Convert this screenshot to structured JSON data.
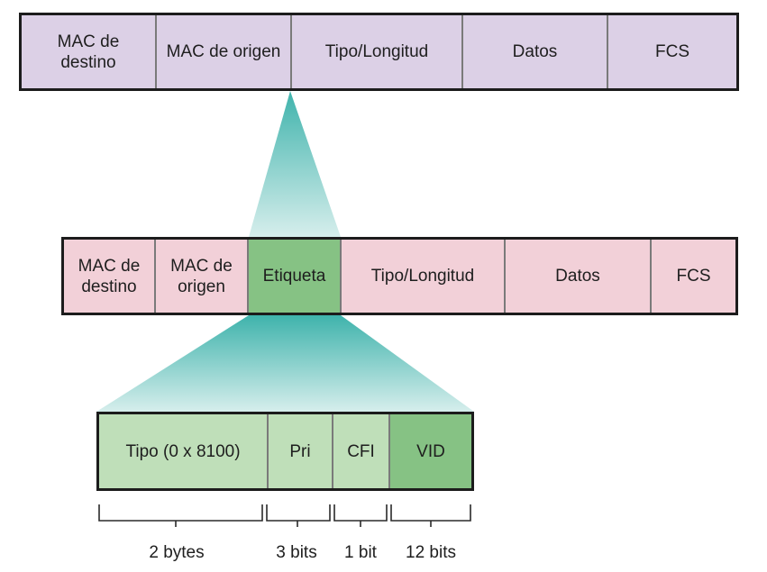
{
  "frame_top": {
    "fields": [
      {
        "label": "MAC de\ndestino"
      },
      {
        "label": "MAC de origen"
      },
      {
        "label": "Tipo/Longitud"
      },
      {
        "label": "Datos"
      },
      {
        "label": "FCS"
      }
    ]
  },
  "frame_mid": {
    "fields": [
      {
        "label": "MAC de\ndestino"
      },
      {
        "label": "MAC de\norigen"
      },
      {
        "label": "Etiqueta"
      },
      {
        "label": "Tipo/Longitud"
      },
      {
        "label": "Datos"
      },
      {
        "label": "FCS"
      }
    ]
  },
  "frame_bot": {
    "fields": [
      {
        "label": "Tipo (0 x 8100)"
      },
      {
        "label": "Pri"
      },
      {
        "label": "CFI"
      },
      {
        "label": "VID"
      }
    ]
  },
  "sizes": [
    {
      "label": "2 bytes"
    },
    {
      "label": "3 bits"
    },
    {
      "label": "1 bit"
    },
    {
      "label": "12 bits"
    }
  ],
  "colors": {
    "frame_top": "#dcd0e6",
    "frame_mid": "#f2d0d8",
    "tag_field": "#86c284",
    "frame_bot": "#bfdfb9",
    "vid_field": "#86c284",
    "funnel_dark": "#3fb3ac",
    "funnel_light": "#d6eeec"
  }
}
